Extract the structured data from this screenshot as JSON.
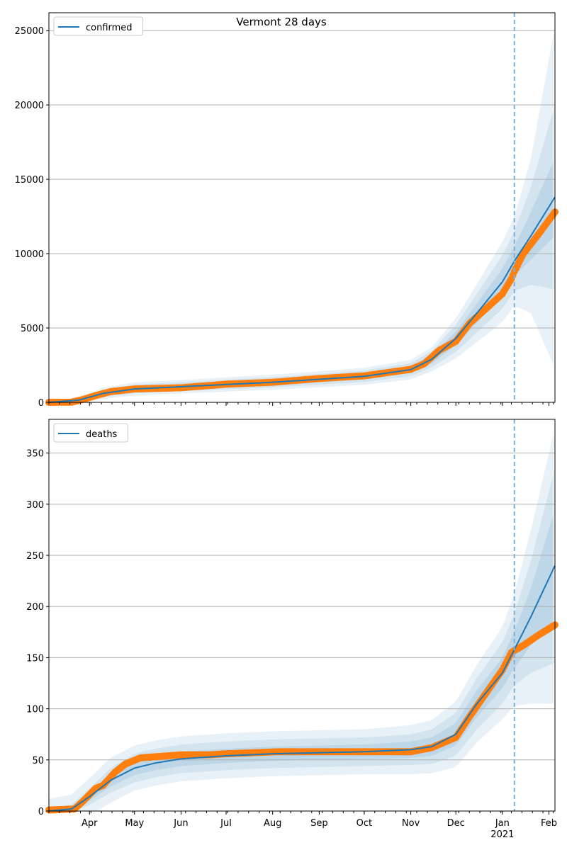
{
  "title": "Vermont 28 days",
  "colors": {
    "model_line": "#1f77b4",
    "observed": "#ff7f0e",
    "band": "#1f77b4",
    "forecast_line": "#7fb1d6",
    "grid": "#b0b0b0"
  },
  "x_axis": {
    "month_labels": [
      {
        "date": "2020-04-01",
        "label": "Apr"
      },
      {
        "date": "2020-05-01",
        "label": "May"
      },
      {
        "date": "2020-06-01",
        "label": "Jun"
      },
      {
        "date": "2020-07-01",
        "label": "Jul"
      },
      {
        "date": "2020-08-01",
        "label": "Aug"
      },
      {
        "date": "2020-09-01",
        "label": "Sep"
      },
      {
        "date": "2020-10-01",
        "label": "Oct"
      },
      {
        "date": "2020-11-01",
        "label": "Nov"
      },
      {
        "date": "2020-12-01",
        "label": "Dec"
      },
      {
        "date": "2021-01-01",
        "label": "Jan"
      },
      {
        "date": "2021-02-01",
        "label": "Feb"
      }
    ],
    "year_label": "2021",
    "range": [
      "2020-03-05",
      "2021-02-05"
    ]
  },
  "chart_data": [
    {
      "type": "line",
      "legend": "confirmed",
      "legend_position": "top-left",
      "grid": true,
      "ylim": [
        0,
        26200
      ],
      "yticks": [
        "0",
        "5000",
        "10000",
        "15000",
        "20000",
        "25000"
      ],
      "forecast_start": "2021-01-09",
      "model": {
        "x": [
          "2020-03-05",
          "2020-03-25",
          "2020-04-10",
          "2020-05-01",
          "2020-06-01",
          "2020-07-01",
          "2020-08-01",
          "2020-09-01",
          "2020-10-01",
          "2020-11-01",
          "2020-11-15",
          "2020-12-01",
          "2020-12-15",
          "2021-01-01",
          "2021-01-09",
          "2021-01-20",
          "2021-02-05"
        ],
        "y": [
          0,
          150,
          600,
          900,
          1050,
          1200,
          1350,
          1550,
          1750,
          2200,
          2900,
          4300,
          6000,
          8100,
          9500,
          11200,
          13800
        ],
        "band_halfwidth_sd1": [
          0,
          60,
          120,
          150,
          150,
          160,
          170,
          180,
          190,
          220,
          280,
          450,
          650,
          900,
          1000,
          1600,
          2600
        ],
        "band_halfwidth_sd2": [
          0,
          120,
          250,
          300,
          300,
          320,
          340,
          360,
          380,
          440,
          550,
          900,
          1300,
          1800,
          2000,
          3300,
          6200
        ],
        "band_halfwidth_sd3": [
          0,
          180,
          380,
          450,
          450,
          480,
          510,
          540,
          570,
          660,
          820,
          1350,
          1950,
          2700,
          3000,
          5200,
          11500
        ]
      },
      "observed": {
        "x": [
          "2020-03-05",
          "2020-03-20",
          "2020-03-28",
          "2020-04-05",
          "2020-04-15",
          "2020-05-01",
          "2020-06-01",
          "2020-07-01",
          "2020-08-01",
          "2020-09-01",
          "2020-10-01",
          "2020-11-01",
          "2020-11-10",
          "2020-11-20",
          "2020-12-01",
          "2020-12-10",
          "2020-12-20",
          "2021-01-01",
          "2021-01-07",
          "2021-01-09",
          "2021-01-15",
          "2021-01-25",
          "2021-02-05"
        ],
        "y": [
          0,
          10,
          200,
          450,
          720,
          900,
          980,
          1220,
          1350,
          1600,
          1780,
          2220,
          2600,
          3500,
          4100,
          5300,
          6200,
          7300,
          8300,
          8800,
          10000,
          11300,
          12800
        ]
      }
    },
    {
      "type": "line",
      "legend": "deaths",
      "legend_position": "top-left",
      "grid": true,
      "ylim": [
        0,
        383
      ],
      "yticks": [
        "0",
        "50",
        "100",
        "150",
        "200",
        "250",
        "300",
        "350"
      ],
      "forecast_start": "2021-01-09",
      "model": {
        "x": [
          "2020-03-05",
          "2020-03-20",
          "2020-04-01",
          "2020-04-15",
          "2020-05-01",
          "2020-05-15",
          "2020-06-01",
          "2020-07-01",
          "2020-08-01",
          "2020-09-01",
          "2020-10-01",
          "2020-11-01",
          "2020-11-15",
          "2020-12-01",
          "2020-12-15",
          "2021-01-01",
          "2021-01-09",
          "2021-01-20",
          "2021-02-05"
        ],
        "y": [
          0,
          2,
          14,
          30,
          42,
          47,
          51,
          54,
          56,
          57,
          58,
          60,
          63,
          75,
          105,
          135,
          158,
          190,
          240
        ],
        "band_halfwidth_sd1": [
          1,
          2,
          4,
          6,
          7,
          7,
          7,
          7,
          7,
          7,
          7,
          8,
          9,
          11,
          13,
          15,
          18,
          28,
          55
        ],
        "band_halfwidth_sd2": [
          3,
          4,
          8,
          12,
          14,
          14,
          14,
          14,
          14,
          14,
          14,
          15,
          17,
          21,
          25,
          30,
          35,
          55,
          95
        ],
        "band_halfwidth_sd3": [
          12,
          14,
          18,
          22,
          22,
          22,
          22,
          22,
          22,
          22,
          22,
          24,
          26,
          32,
          38,
          45,
          55,
          85,
          135
        ]
      },
      "observed": {
        "x": [
          "2020-03-05",
          "2020-03-22",
          "2020-03-28",
          "2020-04-05",
          "2020-04-10",
          "2020-04-18",
          "2020-04-25",
          "2020-05-05",
          "2020-06-01",
          "2020-06-20",
          "2020-07-01",
          "2020-08-05",
          "2020-09-01",
          "2020-10-01",
          "2020-11-01",
          "2020-11-15",
          "2020-12-01",
          "2020-12-10",
          "2020-12-20",
          "2021-01-01",
          "2021-01-07",
          "2021-01-09",
          "2021-01-15",
          "2021-01-25",
          "2021-02-05"
        ],
        "y": [
          1,
          2,
          10,
          22,
          25,
          38,
          46,
          52,
          55,
          55,
          56,
          58,
          58,
          58,
          58,
          62,
          72,
          92,
          113,
          138,
          155,
          157,
          162,
          172,
          182
        ]
      }
    }
  ]
}
